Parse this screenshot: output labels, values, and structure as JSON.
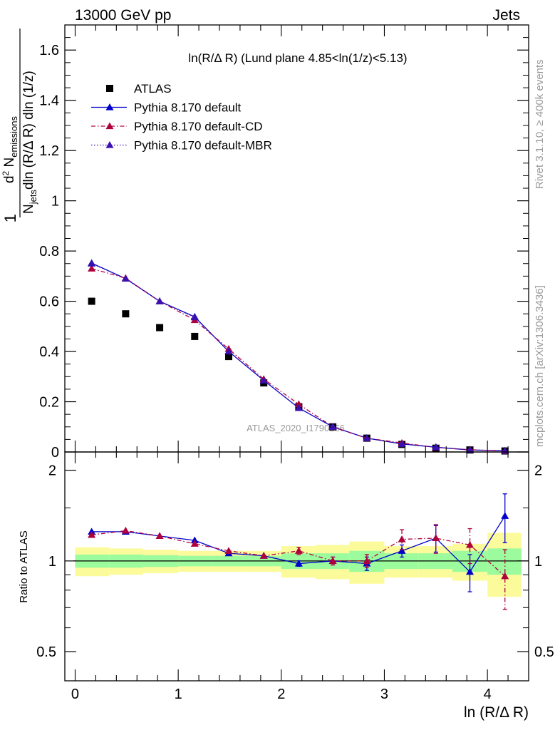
{
  "header": {
    "left": "13000 GeV pp",
    "right": "Jets",
    "side_top": "Rivet 3.1.10, ≥ 400k events",
    "side_bottom": "mcplots.cern.ch [arXiv:1306.3436]"
  },
  "chart_data": [
    {
      "type": "scatter",
      "title": "ln(R/Δ R) (Lund plane 4.85<ln(1/z)<5.13)",
      "xlabel": "ln (R/Δ R)",
      "ylabel": "1/N_jets d²N_emissions / dln(R/Δ R) dln(1/z)",
      "watermark": "ATLAS_2020_I1790256",
      "xlim": [
        -0.1,
        4.4
      ],
      "ylim": [
        0,
        1.7
      ],
      "x_ticks": [
        "0",
        "1",
        "2",
        "3",
        "4"
      ],
      "y_ticks": [
        "0",
        "0.2",
        "0.4",
        "0.6",
        "0.8",
        "1",
        "1.2",
        "1.4",
        "1.6"
      ],
      "x": [
        0.16,
        0.49,
        0.82,
        1.16,
        1.49,
        1.83,
        2.17,
        2.5,
        2.83,
        3.17,
        3.5,
        3.83,
        4.17
      ],
      "legend": {
        "placement": "top-left"
      },
      "series": [
        {
          "name": "ATLAS",
          "marker": "square",
          "color": "#000000",
          "values": [
            0.6,
            0.55,
            0.495,
            0.46,
            0.38,
            0.275,
            0.18,
            0.1,
            0.055,
            0.03,
            0.015,
            0.008,
            0.004
          ]
        },
        {
          "name": "Pythia 8.170 default",
          "marker": "triangle",
          "line": "solid",
          "color": "#0000cc",
          "values": [
            0.752,
            0.69,
            0.6,
            0.538,
            0.4,
            0.285,
            0.175,
            0.1,
            0.055,
            0.032,
            0.019,
            0.008,
            0.005
          ]
        },
        {
          "name": "Pythia 8.170 default-CD",
          "marker": "triangle",
          "line": "dashdot",
          "color": "#b0003c",
          "values": [
            0.73,
            0.692,
            0.6,
            0.525,
            0.41,
            0.29,
            0.19,
            0.1,
            0.055,
            0.036,
            0.018,
            0.009,
            0.0036
          ]
        },
        {
          "name": "Pythia 8.170 default-MBR",
          "marker": "triangle",
          "line": "dotted",
          "color": "#3a10b0",
          "values": [
            0.75,
            0.69,
            0.6,
            0.536,
            0.4,
            0.285,
            0.175,
            0.1,
            0.055,
            0.032,
            0.019,
            0.008,
            0.005
          ]
        }
      ]
    },
    {
      "type": "scatter",
      "ylabel": "Ratio to ATLAS",
      "xlabel": "ln (R/Δ R)",
      "ylim": [
        0.4,
        2.3
      ],
      "y_scale": "log",
      "y_ticks": [
        "0.5",
        "1",
        "2"
      ],
      "x_ticks": [
        "0",
        "1",
        "2",
        "3",
        "4"
      ],
      "bin_edges": [
        0,
        0.33,
        0.66,
        1.0,
        1.33,
        1.66,
        2.0,
        2.33,
        2.66,
        3.0,
        3.33,
        3.66,
        4.0,
        4.33
      ],
      "bands": {
        "inner_color": "#9cfb9c",
        "outer_color": "#fbfb9c",
        "inner": [
          [
            0.95,
            1.05
          ],
          [
            0.95,
            1.05
          ],
          [
            0.955,
            1.045
          ],
          [
            0.96,
            1.04
          ],
          [
            0.96,
            1.04
          ],
          [
            0.96,
            1.04
          ],
          [
            0.94,
            1.06
          ],
          [
            0.94,
            1.06
          ],
          [
            0.92,
            1.08
          ],
          [
            0.94,
            1.06
          ],
          [
            0.94,
            1.06
          ],
          [
            0.92,
            1.08
          ],
          [
            0.9,
            1.1
          ]
        ],
        "outer": [
          [
            0.89,
            1.11
          ],
          [
            0.9,
            1.1
          ],
          [
            0.91,
            1.09
          ],
          [
            0.92,
            1.08
          ],
          [
            0.92,
            1.08
          ],
          [
            0.92,
            1.08
          ],
          [
            0.88,
            1.12
          ],
          [
            0.87,
            1.13
          ],
          [
            0.84,
            1.16
          ],
          [
            0.88,
            1.12
          ],
          [
            0.88,
            1.12
          ],
          [
            0.86,
            1.14
          ],
          [
            0.76,
            1.24
          ]
        ]
      },
      "x": [
        0.16,
        0.49,
        0.82,
        1.16,
        1.49,
        1.83,
        2.17,
        2.5,
        2.83,
        3.17,
        3.5,
        3.83,
        4.17
      ],
      "series": [
        {
          "name": "Pythia 8.170 default",
          "color": "#0000cc",
          "line": "solid",
          "values": [
            1.25,
            1.25,
            1.21,
            1.17,
            1.06,
            1.04,
            0.98,
            1.0,
            0.98,
            1.08,
            1.19,
            0.92,
            1.41
          ],
          "err": [
            0.0,
            0.0,
            0.0,
            0.0,
            0.0,
            0.0,
            0.02,
            0.03,
            0.05,
            0.05,
            0.12,
            0.13,
            0.26
          ]
        },
        {
          "name": "Pythia 8.170 default-CD",
          "color": "#b0003c",
          "line": "dashdot",
          "values": [
            1.22,
            1.26,
            1.21,
            1.14,
            1.08,
            1.04,
            1.08,
            1.0,
            1.0,
            1.18,
            1.19,
            1.13,
            0.89
          ],
          "err": [
            0.0,
            0.0,
            0.0,
            0.0,
            0.0,
            0.0,
            0.03,
            0.03,
            0.05,
            0.09,
            0.13,
            0.15,
            0.2
          ]
        }
      ]
    }
  ]
}
